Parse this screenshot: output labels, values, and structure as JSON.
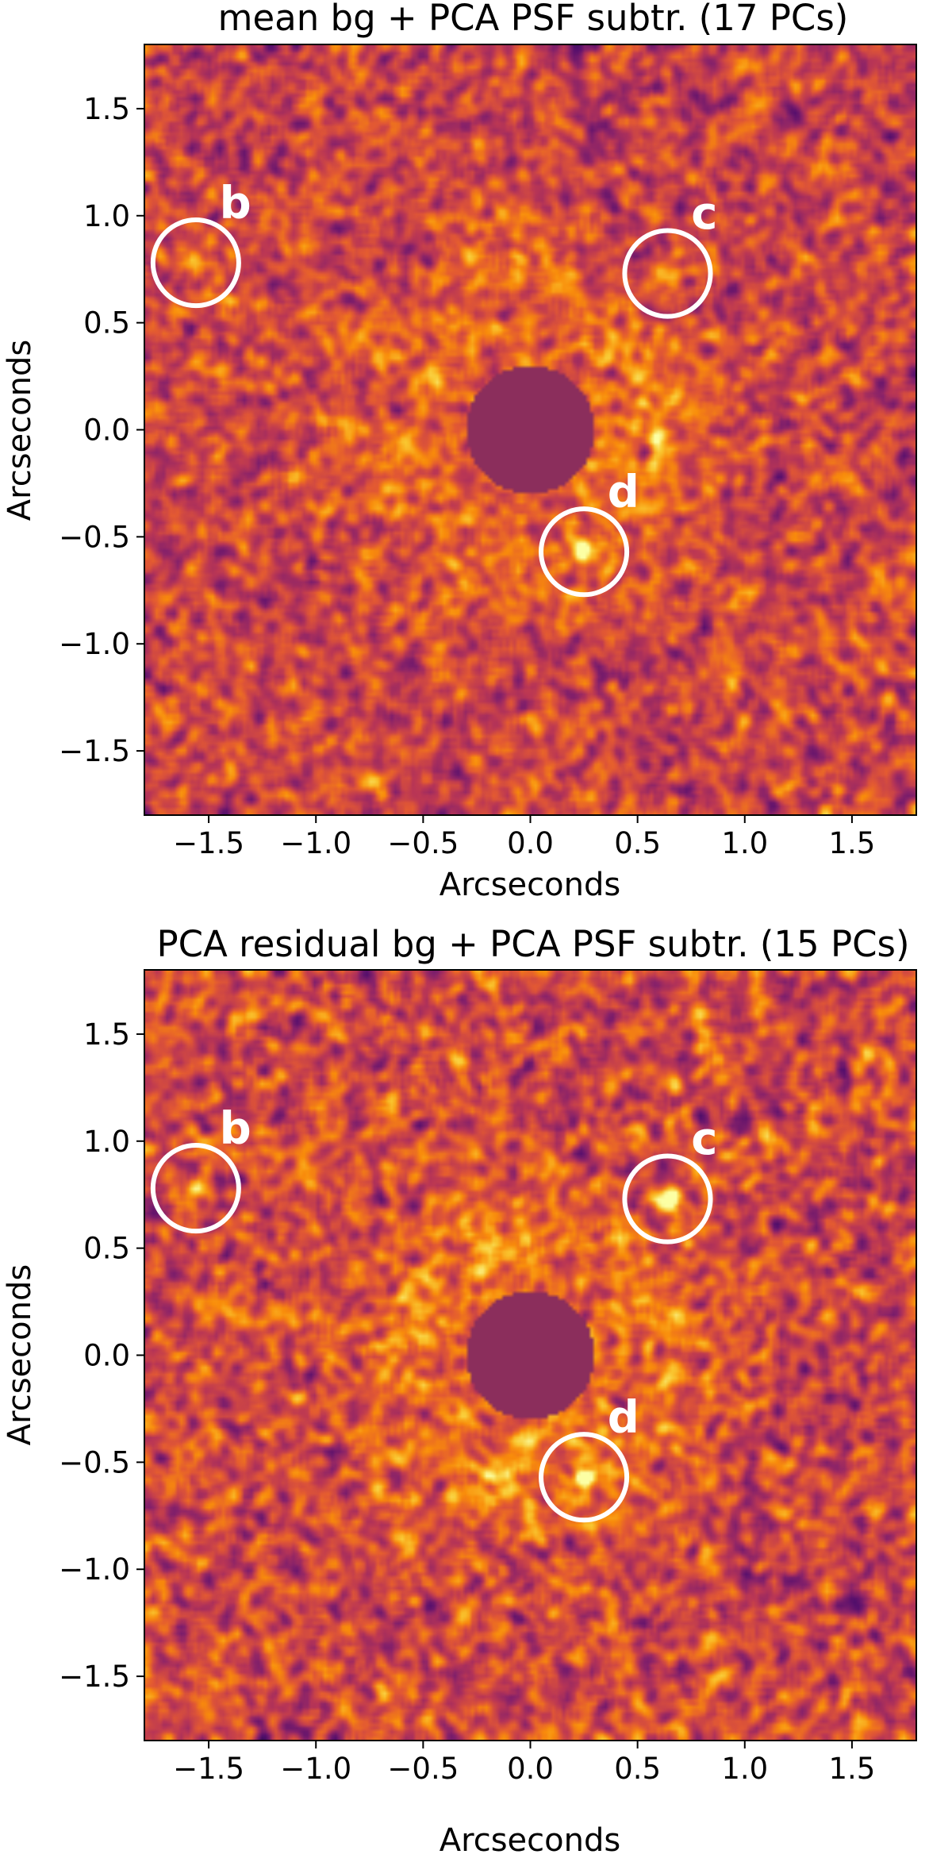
{
  "chart_data": [
    {
      "type": "heatmap",
      "title": "mean bg + PCA PSF subtr. (17 PCs)",
      "xlabel": "Arcseconds",
      "ylabel": "Arcseconds",
      "xlim": [
        -1.8,
        1.8
      ],
      "ylim": [
        -1.8,
        1.8
      ],
      "xticks": [
        -1.5,
        -1.0,
        -0.5,
        0.0,
        0.5,
        1.0,
        1.5
      ],
      "yticks": [
        -1.5,
        -1.0,
        -0.5,
        0.0,
        0.5,
        1.0,
        1.5
      ],
      "xtick_labels": [
        "−1.5",
        "−1.0",
        "−0.5",
        "0.0",
        "0.5",
        "1.0",
        "1.5"
      ],
      "ytick_labels": [
        "−1.5",
        "−1.0",
        "−0.5",
        "0.0",
        "0.5",
        "1.0",
        "1.5"
      ],
      "grid": false,
      "colormap": "inferno",
      "mask_color": "#8b2e5c",
      "mask_radius_arcsec": 0.3,
      "seed": 1729,
      "companions": [
        {
          "label": "b",
          "x": -1.56,
          "y": 0.78,
          "circle_radius": 0.2,
          "brightness": 0.6
        },
        {
          "label": "c",
          "x": 0.64,
          "y": 0.73,
          "circle_radius": 0.2,
          "brightness": 0.9
        },
        {
          "label": "d",
          "x": 0.25,
          "y": -0.57,
          "circle_radius": 0.2,
          "brightness": 0.85
        }
      ]
    },
    {
      "type": "heatmap",
      "title": "PCA residual bg + PCA PSF subtr. (15 PCs)",
      "xlabel": "Arcseconds",
      "ylabel": "Arcseconds",
      "xlim": [
        -1.8,
        1.8
      ],
      "ylim": [
        -1.8,
        1.8
      ],
      "xticks": [
        -1.5,
        -1.0,
        -0.5,
        0.0,
        0.5,
        1.0,
        1.5
      ],
      "yticks": [
        -1.5,
        -1.0,
        -0.5,
        0.0,
        0.5,
        1.0,
        1.5
      ],
      "xtick_labels": [
        "−1.5",
        "−1.0",
        "−0.5",
        "0.0",
        "0.5",
        "1.0",
        "1.5"
      ],
      "ytick_labels": [
        "−1.5",
        "−1.0",
        "−0.5",
        "0.0",
        "0.5",
        "1.0",
        "1.5"
      ],
      "grid": false,
      "colormap": "inferno",
      "mask_color": "#8b2e5c",
      "mask_radius_arcsec": 0.3,
      "seed": 4242,
      "companions": [
        {
          "label": "b",
          "x": -1.56,
          "y": 0.78,
          "circle_radius": 0.2,
          "brightness": 0.85
        },
        {
          "label": "c",
          "x": 0.64,
          "y": 0.73,
          "circle_radius": 0.2,
          "brightness": 1.0
        },
        {
          "label": "d",
          "x": 0.25,
          "y": -0.57,
          "circle_radius": 0.2,
          "brightness": 1.0
        }
      ]
    }
  ]
}
